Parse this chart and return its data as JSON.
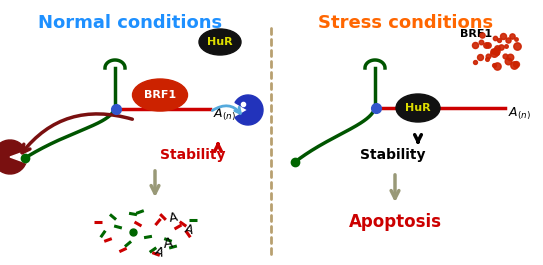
{
  "title_left": "Normal conditions",
  "title_right": "Stress conditions",
  "title_left_color": "#1E90FF",
  "title_right_color": "#FF6600",
  "apoptosis_text": "Apoptosis",
  "stability_down_color": "#CC0000",
  "stability_up_color": "#000000",
  "apoptosis_color": "#CC0000",
  "BRF1_color": "#CC2200",
  "HuR_bg_color": "#111111",
  "HuR_text_color": "#DDDD00",
  "bg_color": "#FFFFFF",
  "dashed_line_color": "#B8A070",
  "gray_arrow_color": "#999977",
  "mRNA_color": "#005500",
  "poly_A_color": "#CC0000",
  "blue_dot_color": "#3355CC",
  "green_dot_color": "#006600",
  "pacman_blue_color": "#2233BB",
  "pacman_dark_color": "#7A1010",
  "dark_red_arrow_color": "#7A1010",
  "light_blue_arrow_color": "#55AADD",
  "brf1_dot_color": "#CC2200"
}
